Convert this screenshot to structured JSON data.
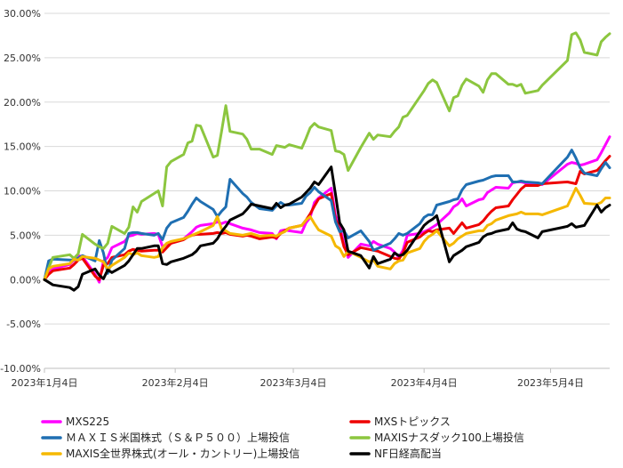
{
  "chart_data": {
    "type": "line",
    "title": "",
    "xlabel": "",
    "ylabel": "",
    "ylim": [
      -0.1,
      0.3
    ],
    "yticks": [
      -0.1,
      -0.05,
      0.0,
      0.05,
      0.1,
      0.15,
      0.2,
      0.25,
      0.3
    ],
    "ytick_labels": [
      "-10.00%",
      "-5.00%",
      "0.00%",
      "5.00%",
      "10.00%",
      "15.00%",
      "20.00%",
      "25.00%",
      "30.00%"
    ],
    "x_dates": [
      "2023-01-04",
      "2023-01-05",
      "2023-01-06",
      "2023-01-10",
      "2023-01-11",
      "2023-01-12",
      "2023-01-13",
      "2023-01-16",
      "2023-01-17",
      "2023-01-18",
      "2023-01-19",
      "2023-01-20",
      "2023-01-23",
      "2023-01-24",
      "2023-01-25",
      "2023-01-26",
      "2023-01-27",
      "2023-01-30",
      "2023-01-31",
      "2023-02-01",
      "2023-02-02",
      "2023-02-03",
      "2023-02-06",
      "2023-02-07",
      "2023-02-08",
      "2023-02-09",
      "2023-02-10",
      "2023-02-13",
      "2023-02-14",
      "2023-02-15",
      "2023-02-16",
      "2023-02-17",
      "2023-02-20",
      "2023-02-21",
      "2023-02-22",
      "2023-02-24",
      "2023-02-27",
      "2023-02-28",
      "2023-03-01",
      "2023-03-02",
      "2023-03-03",
      "2023-03-06",
      "2023-03-07",
      "2023-03-08",
      "2023-03-09",
      "2023-03-10",
      "2023-03-13",
      "2023-03-14",
      "2023-03-15",
      "2023-03-16",
      "2023-03-17",
      "2023-03-20",
      "2023-03-22",
      "2023-03-23",
      "2023-03-24",
      "2023-03-27",
      "2023-03-28",
      "2023-03-29",
      "2023-03-30",
      "2023-03-31",
      "2023-04-03",
      "2023-04-04",
      "2023-04-05",
      "2023-04-06",
      "2023-04-07",
      "2023-04-10",
      "2023-04-11",
      "2023-04-12",
      "2023-04-13",
      "2023-04-14",
      "2023-04-17",
      "2023-04-18",
      "2023-04-19",
      "2023-04-20",
      "2023-04-21",
      "2023-04-24",
      "2023-04-25",
      "2023-04-26",
      "2023-04-27",
      "2023-04-28",
      "2023-05-01",
      "2023-05-02",
      "2023-05-08",
      "2023-05-09",
      "2023-05-10",
      "2023-05-11",
      "2023-05-12",
      "2023-05-15",
      "2023-05-16",
      "2023-05-17",
      "2023-05-18"
    ],
    "x_range": [
      "2023-01-04",
      "2023-05-18"
    ],
    "x_ticks": [
      {
        "date": "2023-01-04",
        "label": "2023年1月4日"
      },
      {
        "date": "2023-02-04",
        "label": "2023年2月4日"
      },
      {
        "date": "2023-03-04",
        "label": "2023年3月4日"
      },
      {
        "date": "2023-04-04",
        "label": "2023年4月4日"
      },
      {
        "date": "2023-05-04",
        "label": "2023年5月4日"
      }
    ],
    "grid": {
      "horizontal": true,
      "vertical": false
    },
    "legend_position": "bottom",
    "series": [
      {
        "name": "MXS225",
        "color": "#ff00ff",
        "values": [
          0.0,
          0.008,
          0.012,
          0.017,
          0.022,
          0.027,
          0.026,
          0.006,
          -0.003,
          0.021,
          0.025,
          0.036,
          0.043,
          0.049,
          0.05,
          0.052,
          0.051,
          0.052,
          0.051,
          0.037,
          0.04,
          0.041,
          0.046,
          0.05,
          0.054,
          0.059,
          0.061,
          0.063,
          0.065,
          0.063,
          0.065,
          0.063,
          0.058,
          0.057,
          0.056,
          0.053,
          0.052,
          0.046,
          0.055,
          0.056,
          0.055,
          0.053,
          0.064,
          0.07,
          0.087,
          0.092,
          0.103,
          0.072,
          0.062,
          0.04,
          0.025,
          0.04,
          0.038,
          0.043,
          0.04,
          0.035,
          0.031,
          0.025,
          0.033,
          0.05,
          0.052,
          0.054,
          0.056,
          0.059,
          0.062,
          0.075,
          0.082,
          0.085,
          0.091,
          0.083,
          0.09,
          0.091,
          0.098,
          0.101,
          0.104,
          0.103,
          0.109,
          0.11,
          0.11,
          0.109,
          0.109,
          0.107,
          0.13,
          0.132,
          0.131,
          0.129,
          0.13,
          0.135,
          0.143,
          0.152,
          0.161
        ]
      },
      {
        "name": "MXSトピックス",
        "color": "#ee0000",
        "values": [
          0.0,
          0.006,
          0.01,
          0.013,
          0.017,
          0.022,
          0.024,
          0.004,
          0.0,
          0.016,
          0.018,
          0.025,
          0.028,
          0.032,
          0.034,
          0.033,
          0.032,
          0.033,
          0.033,
          0.031,
          0.036,
          0.041,
          0.045,
          0.048,
          0.05,
          0.051,
          0.051,
          0.052,
          0.053,
          0.052,
          0.053,
          0.051,
          0.049,
          0.05,
          0.049,
          0.046,
          0.048,
          0.047,
          0.052,
          0.055,
          0.058,
          0.061,
          0.067,
          0.074,
          0.083,
          0.091,
          0.097,
          0.068,
          0.056,
          0.037,
          0.028,
          0.036,
          0.034,
          0.033,
          0.032,
          0.026,
          0.024,
          0.023,
          0.03,
          0.042,
          0.048,
          0.052,
          0.055,
          0.054,
          0.056,
          0.058,
          0.052,
          0.058,
          0.064,
          0.058,
          0.062,
          0.066,
          0.072,
          0.077,
          0.081,
          0.083,
          0.09,
          0.096,
          0.102,
          0.106,
          0.106,
          0.108,
          0.11,
          0.109,
          0.108,
          0.122,
          0.119,
          0.123,
          0.128,
          0.134,
          0.139
        ]
      },
      {
        "name": "ＭＡＸＩＳ米国株式（Ｓ＆Ｐ５００）上場投信",
        "color": "#1f6fb2",
        "values": [
          0.0,
          0.021,
          0.023,
          0.022,
          0.022,
          0.024,
          0.027,
          0.021,
          0.044,
          0.03,
          0.007,
          0.022,
          0.035,
          0.052,
          0.053,
          0.053,
          0.052,
          0.05,
          0.052,
          0.045,
          0.058,
          0.064,
          0.07,
          0.077,
          0.085,
          0.092,
          0.088,
          0.079,
          0.071,
          0.077,
          0.082,
          0.113,
          0.097,
          0.093,
          0.087,
          0.08,
          0.078,
          0.083,
          0.087,
          0.084,
          0.084,
          0.086,
          0.094,
          0.098,
          0.104,
          0.099,
          0.089,
          0.065,
          0.054,
          0.055,
          0.047,
          0.055,
          0.043,
          0.033,
          0.035,
          0.041,
          0.046,
          0.052,
          0.05,
          0.052,
          0.063,
          0.07,
          0.073,
          0.073,
          0.084,
          0.088,
          0.09,
          0.091,
          0.101,
          0.107,
          0.111,
          0.112,
          0.114,
          0.116,
          0.117,
          0.117,
          0.11,
          0.11,
          0.111,
          0.11,
          0.109,
          0.108,
          0.138,
          0.146,
          0.137,
          0.126,
          0.12,
          0.117,
          0.125,
          0.132,
          0.126
        ]
      },
      {
        "name": "MAXISナスダック100上場投信",
        "color": "#8cc63f",
        "values": [
          0.0,
          0.013,
          0.025,
          0.028,
          0.024,
          0.029,
          0.051,
          0.04,
          0.037,
          0.035,
          0.041,
          0.06,
          0.052,
          0.059,
          0.082,
          0.076,
          0.088,
          0.097,
          0.1,
          0.083,
          0.127,
          0.133,
          0.141,
          0.154,
          0.156,
          0.174,
          0.173,
          0.138,
          0.14,
          0.167,
          0.196,
          0.167,
          0.164,
          0.158,
          0.147,
          0.147,
          0.141,
          0.151,
          0.15,
          0.149,
          0.152,
          0.148,
          0.159,
          0.171,
          0.176,
          0.172,
          0.168,
          0.145,
          0.144,
          0.141,
          0.123,
          0.149,
          0.165,
          0.158,
          0.163,
          0.161,
          0.167,
          0.172,
          0.183,
          0.185,
          0.206,
          0.213,
          0.221,
          0.225,
          0.222,
          0.19,
          0.205,
          0.207,
          0.219,
          0.226,
          0.218,
          0.211,
          0.225,
          0.232,
          0.232,
          0.22,
          0.22,
          0.218,
          0.22,
          0.21,
          0.213,
          0.219,
          0.247,
          0.276,
          0.278,
          0.27,
          0.256,
          0.253,
          0.268,
          0.273,
          0.277
        ]
      },
      {
        "name": "MAXIS全世界株式(オール・カントリー)上場投信",
        "color": "#f5b800",
        "values": [
          0.0,
          0.012,
          0.015,
          0.018,
          0.023,
          0.022,
          0.026,
          0.024,
          0.022,
          0.02,
          0.012,
          0.016,
          0.025,
          0.03,
          0.028,
          0.03,
          0.027,
          0.025,
          0.026,
          0.036,
          0.041,
          0.043,
          0.046,
          0.048,
          0.05,
          0.052,
          0.054,
          0.061,
          0.071,
          0.057,
          0.055,
          0.052,
          0.05,
          0.051,
          0.052,
          0.049,
          0.05,
          0.049,
          0.052,
          0.054,
          0.058,
          0.061,
          0.067,
          0.071,
          0.063,
          0.056,
          0.049,
          0.038,
          0.035,
          0.026,
          0.032,
          0.025,
          0.02,
          0.022,
          0.015,
          0.012,
          0.018,
          0.021,
          0.022,
          0.03,
          0.035,
          0.043,
          0.048,
          0.051,
          0.055,
          0.038,
          0.041,
          0.046,
          0.049,
          0.052,
          0.055,
          0.055,
          0.061,
          0.063,
          0.067,
          0.072,
          0.073,
          0.074,
          0.076,
          0.074,
          0.074,
          0.073,
          0.083,
          0.093,
          0.103,
          0.095,
          0.086,
          0.085,
          0.087,
          0.092,
          0.092
        ]
      },
      {
        "name": "NF日経高配当",
        "color": "#000000",
        "values": [
          0.0,
          -0.003,
          -0.006,
          -0.009,
          -0.012,
          -0.008,
          0.006,
          0.012,
          0.005,
          0.001,
          0.011,
          0.008,
          0.016,
          0.021,
          0.028,
          0.035,
          0.035,
          0.038,
          0.038,
          0.018,
          0.017,
          0.02,
          0.024,
          0.026,
          0.028,
          0.032,
          0.038,
          0.041,
          0.046,
          0.054,
          0.06,
          0.067,
          0.074,
          0.079,
          0.085,
          0.083,
          0.08,
          0.086,
          0.081,
          0.084,
          0.085,
          0.093,
          0.098,
          0.103,
          0.11,
          0.107,
          0.127,
          0.096,
          0.064,
          0.056,
          0.032,
          0.027,
          0.013,
          0.026,
          0.018,
          0.023,
          0.03,
          0.027,
          0.028,
          0.033,
          0.054,
          0.061,
          0.065,
          0.068,
          0.072,
          0.02,
          0.027,
          0.03,
          0.033,
          0.037,
          0.042,
          0.048,
          0.051,
          0.052,
          0.054,
          0.057,
          0.064,
          0.057,
          0.055,
          0.054,
          0.047,
          0.054,
          0.06,
          0.063,
          0.059,
          0.06,
          0.061,
          0.084,
          0.076,
          0.081,
          0.084
        ]
      }
    ]
  }
}
